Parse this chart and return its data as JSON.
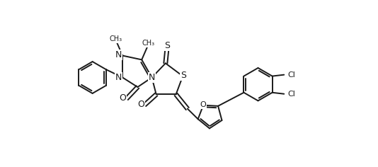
{
  "background": "#ffffff",
  "line_color": "#1a1a1a",
  "line_width": 1.4,
  "font_size": 9,
  "figsize": [
    5.34,
    2.36
  ],
  "dpi": 100,
  "xlim": [
    0.0,
    9.5
  ],
  "ylim": [
    0.3,
    5.0
  ]
}
